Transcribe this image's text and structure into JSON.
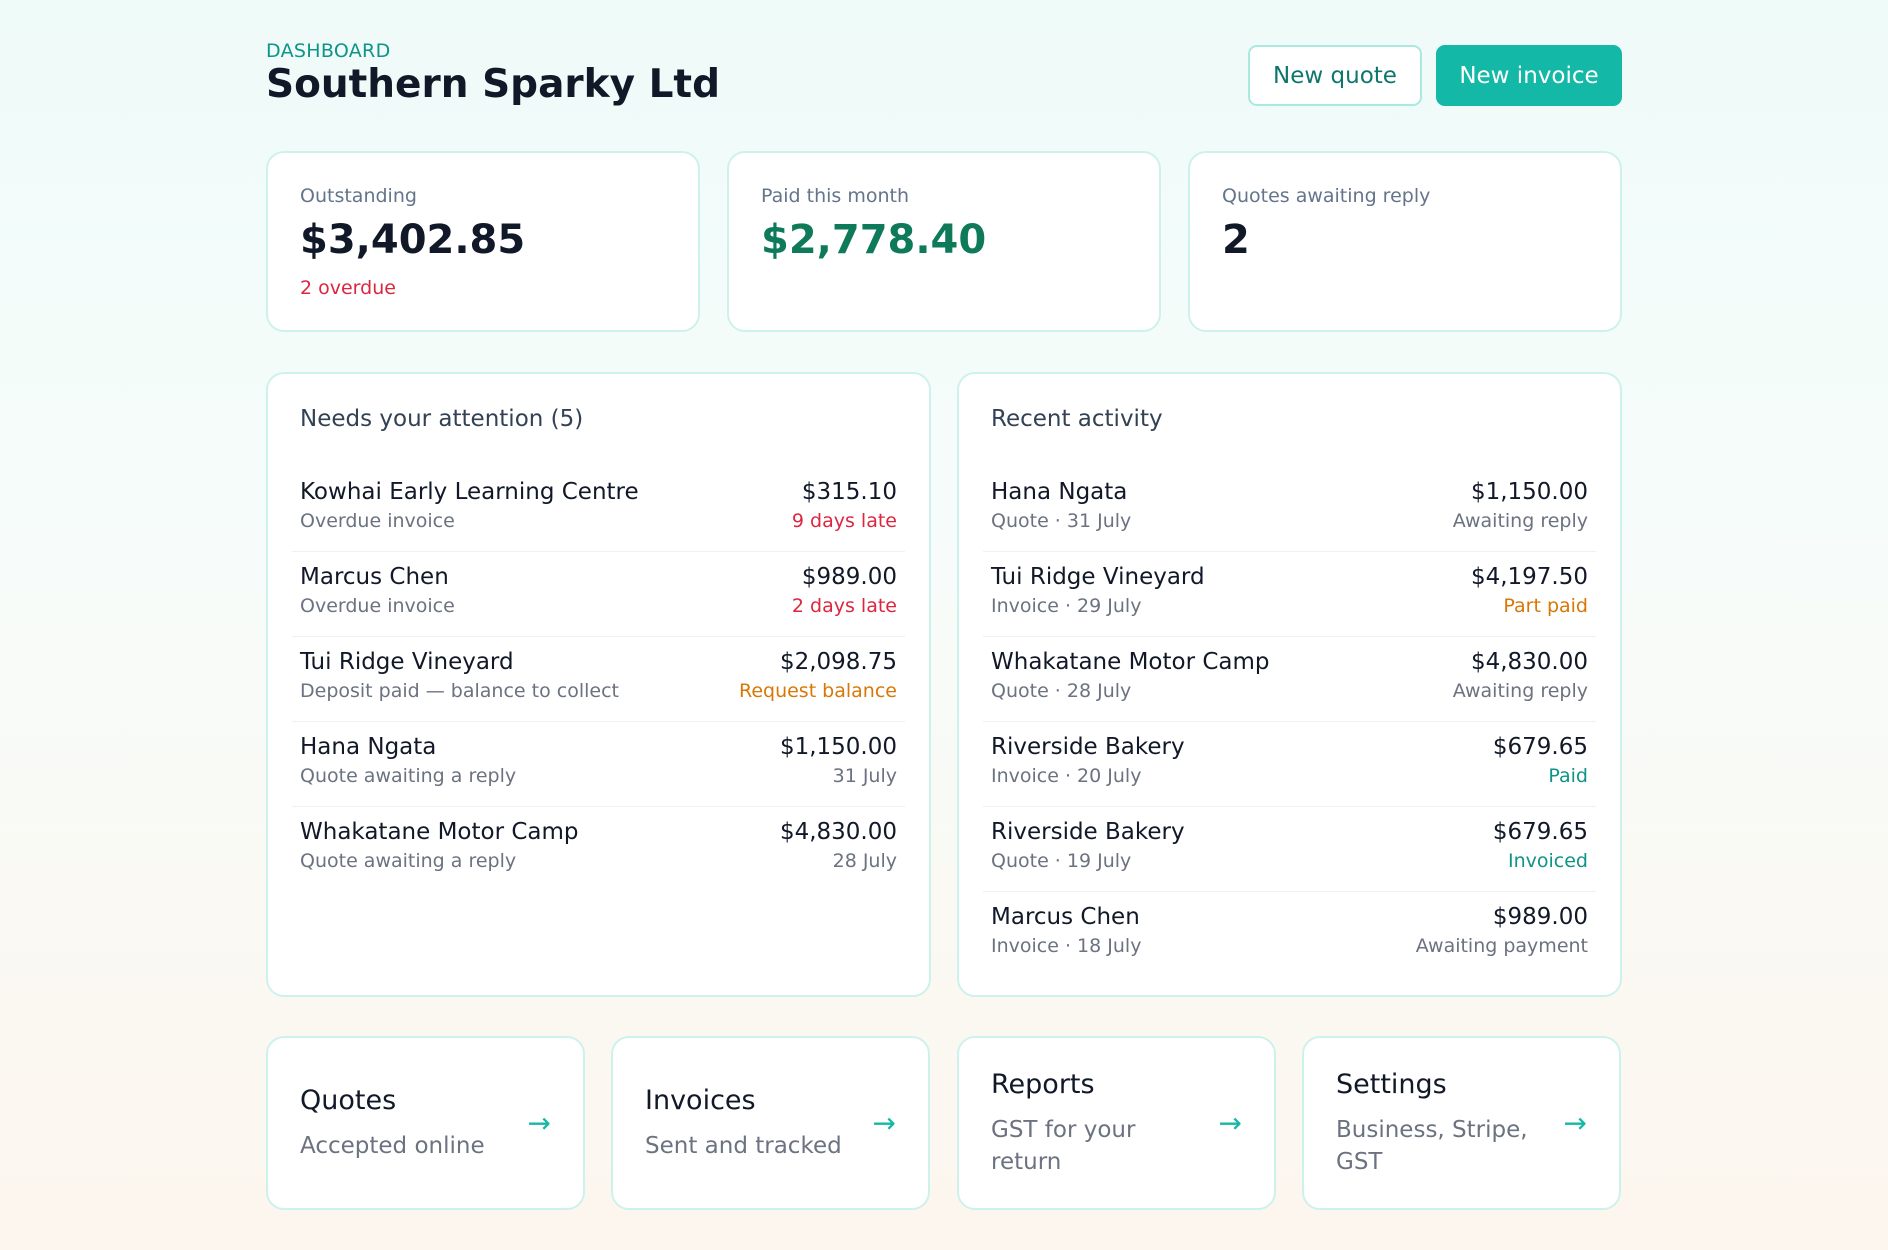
{
  "header": {
    "eyebrow": "DASHBOARD",
    "title": "Southern Sparky Ltd",
    "new_quote_label": "New quote",
    "new_invoice_label": "New invoice"
  },
  "kpis": [
    {
      "label": "Outstanding",
      "value": "$3,402.85",
      "sub": "2 overdue"
    },
    {
      "label": "Paid this month",
      "value": "$2,778.40"
    },
    {
      "label": "Quotes awaiting reply",
      "value": "2"
    }
  ],
  "attention": {
    "title": "Needs your attention (5)",
    "rows": [
      {
        "name": "Kowhai Early Learning Centre",
        "sub": "Overdue invoice",
        "amount": "$315.10",
        "status": "9 days late"
      },
      {
        "name": "Marcus Chen",
        "sub": "Overdue invoice",
        "amount": "$989.00",
        "status": "2 days late"
      },
      {
        "name": "Tui Ridge Vineyard",
        "sub": "Deposit paid — balance to collect",
        "amount": "$2,098.75",
        "status": "Request balance"
      },
      {
        "name": "Hana Ngata",
        "sub": "Quote awaiting a reply",
        "amount": "$1,150.00",
        "status": "31 July"
      },
      {
        "name": "Whakatane Motor Camp",
        "sub": "Quote awaiting a reply",
        "amount": "$4,830.00",
        "status": "28 July"
      }
    ]
  },
  "activity": {
    "title": "Recent activity",
    "rows": [
      {
        "name": "Hana Ngata",
        "sub": "Quote · 31 July",
        "amount": "$1,150.00",
        "status": "Awaiting reply"
      },
      {
        "name": "Tui Ridge Vineyard",
        "sub": "Invoice · 29 July",
        "amount": "$4,197.50",
        "status": "Part paid"
      },
      {
        "name": "Whakatane Motor Camp",
        "sub": "Quote · 28 July",
        "amount": "$4,830.00",
        "status": "Awaiting reply"
      },
      {
        "name": "Riverside Bakery",
        "sub": "Invoice · 20 July",
        "amount": "$679.65",
        "status": "Paid"
      },
      {
        "name": "Riverside Bakery",
        "sub": "Quote · 19 July",
        "amount": "$679.65",
        "status": "Invoiced"
      },
      {
        "name": "Marcus Chen",
        "sub": "Invoice · 18 July",
        "amount": "$989.00",
        "status": "Awaiting payment"
      }
    ]
  },
  "nav": [
    {
      "title": "Quotes",
      "sub": "Accepted online",
      "icon": "arrow-right-icon",
      "arrow": "→"
    },
    {
      "title": "Invoices",
      "sub": "Sent and tracked",
      "icon": "arrow-right-icon",
      "arrow": "→"
    },
    {
      "title": "Reports",
      "sub": "GST for your return",
      "icon": "arrow-right-icon",
      "arrow": "→"
    },
    {
      "title": "Settings",
      "sub": "Business, Stripe, GST",
      "icon": "arrow-right-icon",
      "arrow": "→"
    }
  ],
  "colors": {
    "accent": "#14b8a6",
    "paid_green": "#0f7a5a",
    "overdue_red": "#dc2640",
    "warning_orange": "#d97706"
  }
}
